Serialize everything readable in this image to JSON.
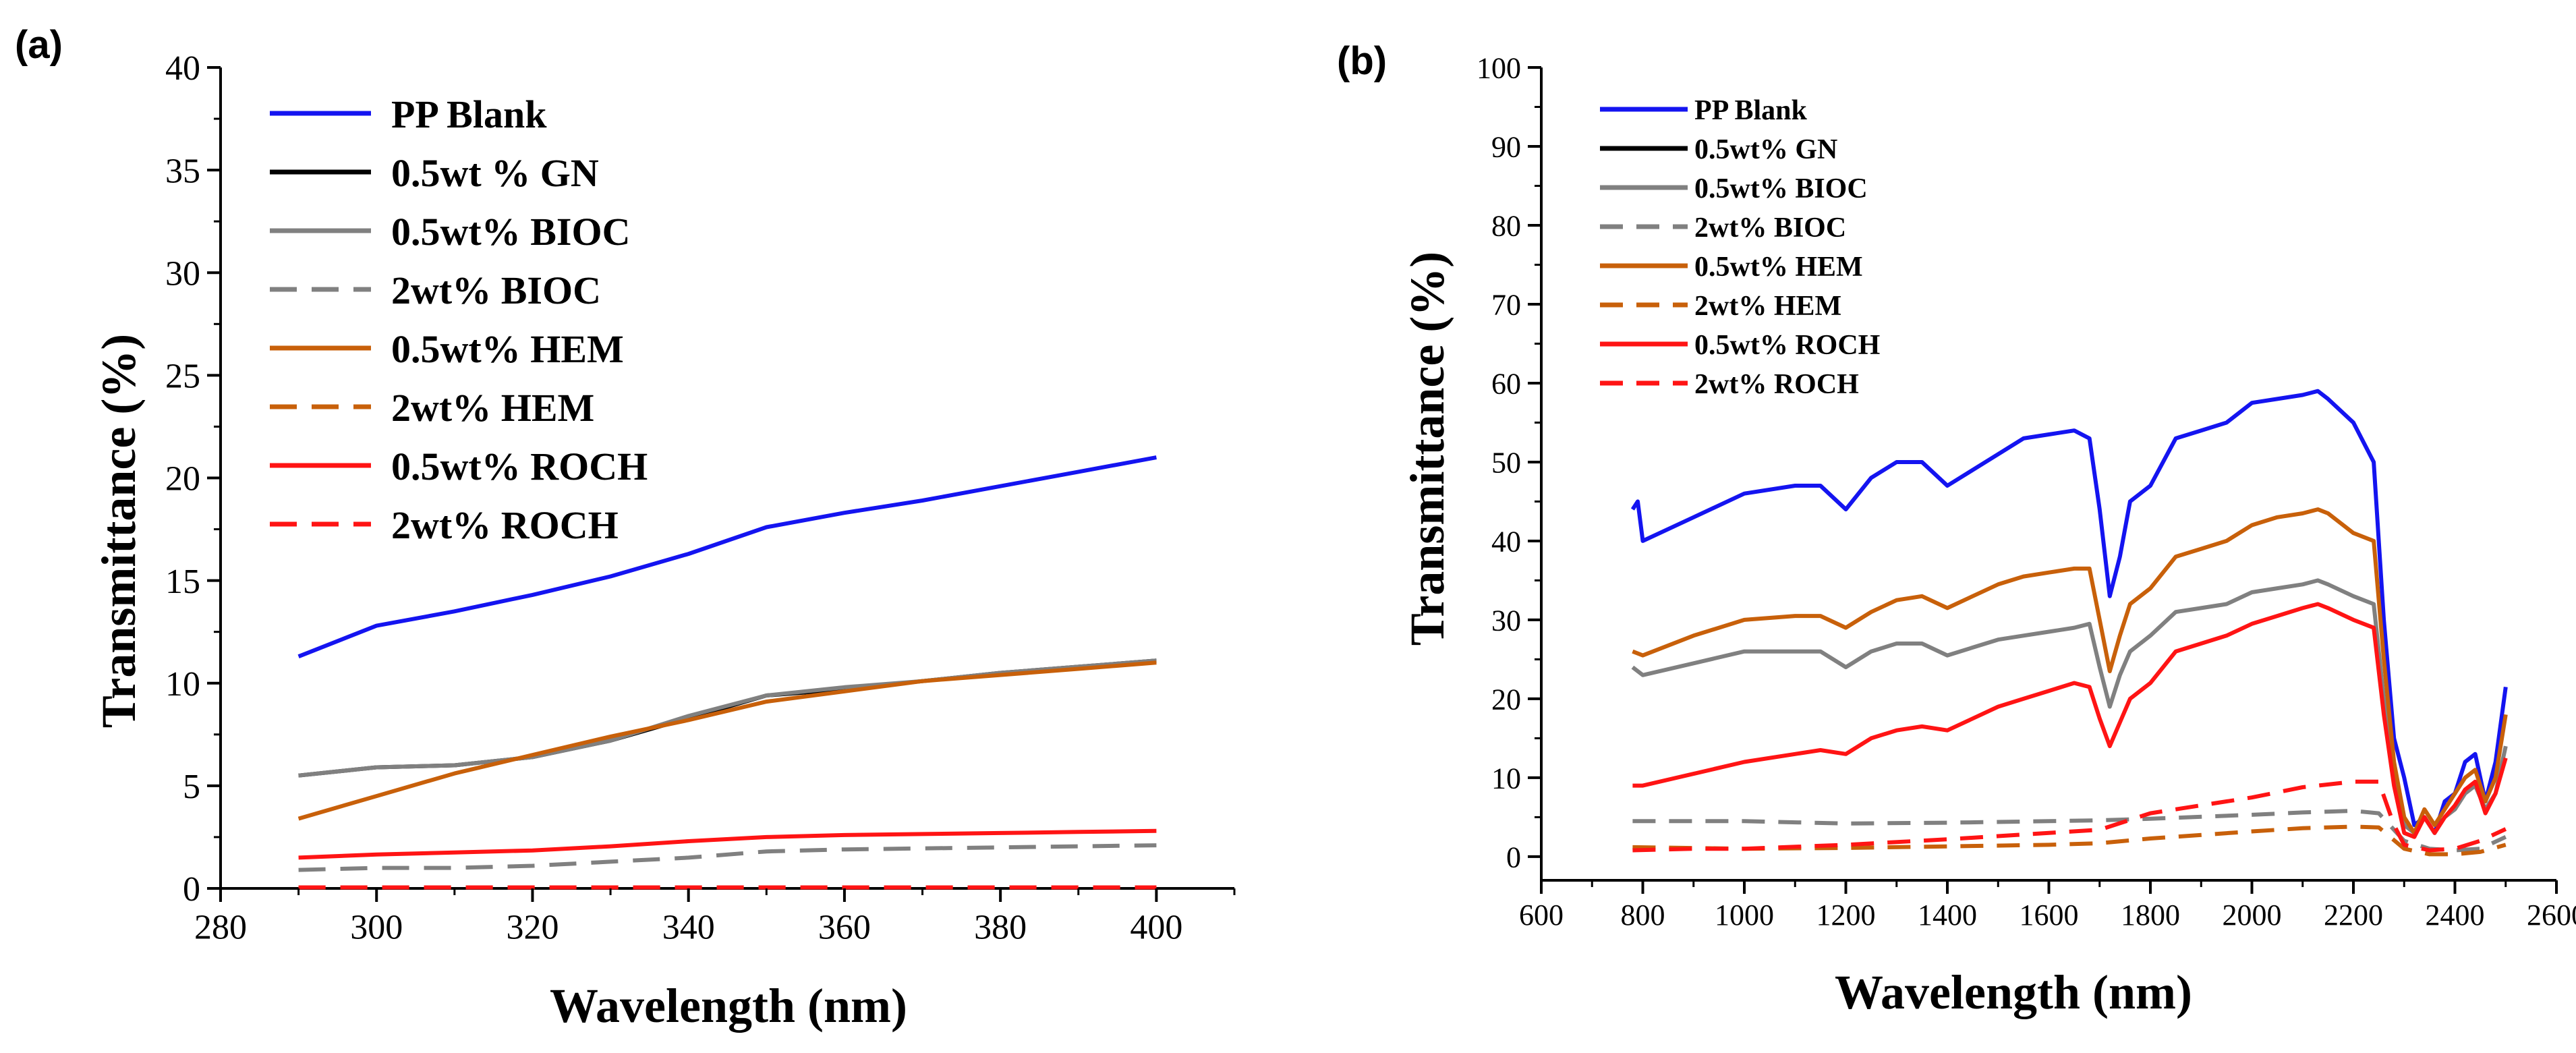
{
  "panels": [
    {
      "panel_label": "(a)",
      "chart_data": {
        "type": "line",
        "xlabel": "Wavelength (nm)",
        "ylabel": "Transmittance (%)",
        "xlim": [
          280,
          410
        ],
        "ylim": [
          0,
          40
        ],
        "xticks": [
          280,
          300,
          320,
          340,
          360,
          380,
          400
        ],
        "yticks": [
          0,
          5,
          10,
          15,
          20,
          25,
          30,
          35,
          40
        ],
        "grid": false,
        "legend_position": "top-left",
        "series": [
          {
            "name": "PP Blank",
            "color": "#1414f0",
            "dash": "solid",
            "x": [
              290,
              300,
              310,
              320,
              330,
              340,
              350,
              360,
              370,
              380,
              390,
              400
            ],
            "y": [
              11.3,
              12.8,
              13.5,
              14.3,
              15.2,
              16.3,
              17.6,
              18.3,
              18.9,
              19.6,
              20.3,
              21.0
            ]
          },
          {
            "name": "0.5wt % GN",
            "color": "#000000",
            "dash": "solid",
            "x": [
              290,
              300,
              310,
              320,
              330,
              340,
              350,
              360,
              370,
              380,
              390,
              400
            ],
            "y": [
              5.5,
              5.9,
              6.0,
              6.4,
              7.2,
              8.3,
              9.4,
              9.7,
              10.1,
              10.5,
              10.8,
              11.1
            ]
          },
          {
            "name": "0.5wt% BIOC",
            "color": "#808080",
            "dash": "solid",
            "x": [
              290,
              300,
              310,
              320,
              330,
              340,
              350,
              360,
              370,
              380,
              390,
              400
            ],
            "y": [
              5.5,
              5.9,
              6.0,
              6.4,
              7.2,
              8.4,
              9.4,
              9.8,
              10.1,
              10.5,
              10.8,
              11.1
            ]
          },
          {
            "name": "2wt% BIOC",
            "color": "#808080",
            "dash": "dashed",
            "x": [
              290,
              300,
              310,
              320,
              330,
              340,
              350,
              360,
              370,
              380,
              390,
              400
            ],
            "y": [
              0.9,
              1.0,
              1.0,
              1.1,
              1.3,
              1.5,
              1.8,
              1.9,
              1.95,
              2.0,
              2.05,
              2.1
            ]
          },
          {
            "name": "0.5wt% HEM",
            "color": "#c8600a",
            "dash": "solid",
            "x": [
              290,
              300,
              310,
              320,
              330,
              340,
              350,
              360,
              370,
              380,
              390,
              400
            ],
            "y": [
              3.4,
              4.5,
              5.6,
              6.5,
              7.4,
              8.2,
              9.1,
              9.6,
              10.1,
              10.4,
              10.7,
              11.0
            ]
          },
          {
            "name": "2wt% HEM",
            "color": "#c8600a",
            "dash": "dashed",
            "x": [
              290,
              400
            ],
            "y": [
              0.05,
              0.05
            ]
          },
          {
            "name": "0.5wt% ROCH",
            "color": "#ff1414",
            "dash": "solid",
            "x": [
              290,
              300,
              310,
              320,
              330,
              340,
              350,
              360,
              370,
              380,
              390,
              400
            ],
            "y": [
              1.5,
              1.65,
              1.75,
              1.85,
              2.05,
              2.3,
              2.5,
              2.6,
              2.65,
              2.7,
              2.75,
              2.8
            ]
          },
          {
            "name": "2wt% ROCH",
            "color": "#ff1414",
            "dash": "dashed",
            "x": [
              290,
              400
            ],
            "y": [
              0.05,
              0.05
            ]
          }
        ]
      }
    },
    {
      "panel_label": "(b)",
      "chart_data": {
        "type": "line",
        "xlabel": "Wavelength (nm)",
        "ylabel": "Transmittance (%)",
        "xlim": [
          600,
          2600
        ],
        "ylim": [
          -3,
          100
        ],
        "xticks": [
          600,
          800,
          1000,
          1200,
          1400,
          1600,
          1800,
          2000,
          2200,
          2400,
          2600
        ],
        "yticks": [
          0,
          10,
          20,
          30,
          40,
          50,
          60,
          70,
          80,
          90,
          100
        ],
        "grid": false,
        "legend_position": "top-left",
        "series": [
          {
            "name": "PP Blank",
            "color": "#1414f0",
            "dash": "solid",
            "x": [
              780,
              790,
              800,
              900,
              1000,
              1100,
              1150,
              1200,
              1250,
              1300,
              1350,
              1400,
              1450,
              1500,
              1550,
              1600,
              1650,
              1680,
              1700,
              1720,
              1740,
              1760,
              1800,
              1850,
              1900,
              1950,
              2000,
              2050,
              2100,
              2130,
              2150,
              2200,
              2240,
              2260,
              2280,
              2300,
              2320,
              2340,
              2360,
              2380,
              2400,
              2420,
              2440,
              2460,
              2480,
              2500
            ],
            "y": [
              44,
              45,
              40,
              43,
              46,
              47,
              47,
              44,
              48,
              50,
              50,
              47,
              49,
              51,
              53,
              53.5,
              54,
              53,
              44,
              33,
              38,
              45,
              47,
              53,
              54,
              55,
              57.5,
              58,
              58.5,
              59,
              58,
              55,
              50,
              30,
              15,
              10,
              4,
              5,
              3,
              7,
              8,
              12,
              13,
              7,
              12,
              21.5
            ]
          },
          {
            "name": "0.5wt% GN",
            "color": "#000000",
            "dash": "solid",
            "x": [
              780,
              2500
            ],
            "y": [
              null,
              null
            ]
          },
          {
            "name": "0.5wt% BIOC",
            "color": "#808080",
            "dash": "solid",
            "x": [
              780,
              800,
              900,
              1000,
              1100,
              1150,
              1200,
              1250,
              1300,
              1350,
              1400,
              1450,
              1500,
              1550,
              1600,
              1650,
              1680,
              1700,
              1720,
              1740,
              1760,
              1800,
              1850,
              1900,
              1950,
              2000,
              2050,
              2100,
              2130,
              2150,
              2200,
              2240,
              2260,
              2280,
              2300,
              2320,
              2340,
              2360,
              2380,
              2400,
              2420,
              2440,
              2460,
              2480,
              2500
            ],
            "y": [
              24,
              23,
              24.5,
              26,
              26,
              26,
              24,
              26,
              27,
              27,
              25.5,
              26.5,
              27.5,
              28,
              28.5,
              29,
              29.5,
              24,
              19,
              23,
              26,
              28,
              31,
              31.5,
              32,
              33.5,
              34,
              34.5,
              35,
              34.5,
              33,
              32,
              20,
              10,
              4,
              3,
              5,
              3,
              5,
              6,
              8,
              9,
              6,
              8,
              14
            ]
          },
          {
            "name": "2wt% BIOC",
            "color": "#808080",
            "dash": "dashed",
            "x": [
              780,
              1000,
              1200,
              1400,
              1600,
              1700,
              1800,
              2000,
              2100,
              2200,
              2250,
              2300,
              2350,
              2400,
              2450,
              2500
            ],
            "y": [
              4.5,
              4.5,
              4.2,
              4.3,
              4.5,
              4.6,
              4.8,
              5.3,
              5.6,
              5.8,
              5.5,
              2.0,
              1.0,
              0.8,
              1.0,
              2.5
            ]
          },
          {
            "name": "0.5wt% HEM",
            "color": "#c8600a",
            "dash": "solid",
            "x": [
              780,
              800,
              900,
              1000,
              1100,
              1150,
              1200,
              1250,
              1300,
              1350,
              1400,
              1450,
              1500,
              1550,
              1600,
              1650,
              1680,
              1700,
              1720,
              1740,
              1760,
              1800,
              1850,
              1900,
              1950,
              2000,
              2050,
              2100,
              2130,
              2150,
              2200,
              2240,
              2260,
              2280,
              2300,
              2320,
              2340,
              2360,
              2380,
              2400,
              2420,
              2440,
              2460,
              2480,
              2500
            ],
            "y": [
              26,
              25.5,
              28,
              30,
              30.5,
              30.5,
              29,
              31,
              32.5,
              33,
              31.5,
              33,
              34.5,
              35.5,
              36,
              36.5,
              36.5,
              30,
              23.5,
              28,
              32,
              34,
              38,
              39,
              40,
              42,
              43,
              43.5,
              44,
              43.5,
              41,
              40,
              25,
              12,
              5,
              3,
              6,
              4,
              6,
              8,
              10,
              11,
              7,
              10,
              18
            ]
          },
          {
            "name": "2wt% HEM",
            "color": "#c8600a",
            "dash": "dashed",
            "x": [
              780,
              1000,
              1200,
              1400,
              1600,
              1700,
              1800,
              2000,
              2100,
              2200,
              2250,
              2300,
              2350,
              2400,
              2450,
              2500
            ],
            "y": [
              1.2,
              1.0,
              1.1,
              1.3,
              1.5,
              1.7,
              2.3,
              3.2,
              3.6,
              3.8,
              3.7,
              1.0,
              0.3,
              0.3,
              0.6,
              1.5
            ]
          },
          {
            "name": "0.5wt% ROCH",
            "color": "#ff1414",
            "dash": "solid",
            "x": [
              780,
              800,
              900,
              1000,
              1100,
              1150,
              1200,
              1250,
              1300,
              1350,
              1400,
              1450,
              1500,
              1550,
              1600,
              1650,
              1680,
              1700,
              1720,
              1740,
              1760,
              1800,
              1850,
              1900,
              1950,
              2000,
              2050,
              2100,
              2130,
              2150,
              2200,
              2240,
              2260,
              2280,
              2300,
              2320,
              2340,
              2360,
              2380,
              2400,
              2420,
              2440,
              2460,
              2480,
              2500
            ],
            "y": [
              9,
              9,
              10.5,
              12,
              13,
              13.5,
              13,
              15,
              16,
              16.5,
              16,
              17.5,
              19,
              20,
              21,
              22,
              21.5,
              17.5,
              14,
              17,
              20,
              22,
              26,
              27,
              28,
              29.5,
              30.5,
              31.5,
              32,
              31.5,
              30,
              29,
              18,
              9,
              3,
              2.5,
              5,
              3,
              5,
              6.5,
              8.5,
              9.5,
              5.5,
              8,
              12.5
            ]
          },
          {
            "name": "2wt% ROCH",
            "color": "#ff1414",
            "dash": "dashed",
            "x": [
              780,
              900,
              1000,
              1200,
              1400,
              1600,
              1700,
              1800,
              1900,
              2000,
              2100,
              2200,
              2250,
              2280,
              2300,
              2350,
              2400,
              2450,
              2500
            ],
            "y": [
              0.8,
              1.0,
              1.0,
              1.5,
              2.2,
              3.0,
              3.4,
              5.5,
              6.5,
              7.5,
              8.8,
              9.5,
              9.5,
              4.0,
              1.5,
              0.8,
              1.0,
              2.0,
              3.5
            ]
          }
        ]
      }
    }
  ]
}
